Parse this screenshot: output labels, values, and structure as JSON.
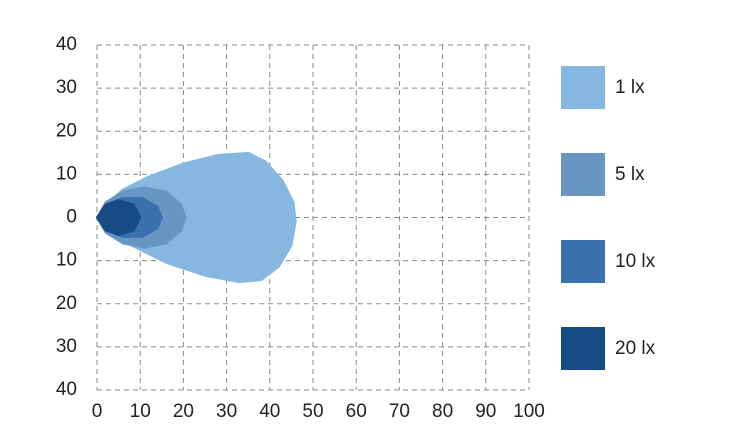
{
  "chart_data": {
    "type": "contour",
    "xlim": [
      0,
      100
    ],
    "xticks": [
      0,
      10,
      20,
      30,
      40,
      50,
      60,
      70,
      80,
      90,
      100
    ],
    "ylim": [
      -40,
      40
    ],
    "yticks": [
      {
        "value": 40,
        "label": "40"
      },
      {
        "value": 30,
        "label": "30"
      },
      {
        "value": 20,
        "label": "20"
      },
      {
        "value": 10,
        "label": "10"
      },
      0,
      {
        "value": -10,
        "label": "10"
      },
      {
        "value": -20,
        "label": "20"
      },
      {
        "value": -30,
        "label": "30"
      },
      {
        "value": -40,
        "label": "40"
      }
    ],
    "grid": true,
    "series": [
      {
        "name": "1 lx",
        "color": "#86b7e1",
        "x": [
          0,
          2,
          6,
          12,
          20,
          28,
          35,
          39,
          43,
          45.5,
          46,
          45,
          42,
          38,
          33,
          25,
          16,
          8,
          3
        ],
        "y": [
          0,
          3,
          6.5,
          9.5,
          12.5,
          14.5,
          15,
          13,
          8.5,
          3.5,
          -1,
          -6.5,
          -11.5,
          -14.5,
          -15,
          -13.5,
          -10.5,
          -6.5,
          -3
        ]
      },
      {
        "name": "5 lx",
        "color": "#6796c3",
        "x": [
          0,
          2,
          6,
          11,
          16,
          19.5,
          20.5,
          19.5,
          16,
          11,
          6,
          2
        ],
        "y": [
          0,
          3.5,
          6,
          7,
          6,
          3,
          0,
          -3,
          -6,
          -7,
          -6,
          -3.5
        ]
      },
      {
        "name": "10 lx",
        "color": "#3a70b0",
        "x": [
          0,
          2,
          6,
          10.5,
          14,
          15,
          14,
          10.5,
          6,
          2
        ],
        "y": [
          0,
          3,
          4.5,
          4.5,
          2.5,
          0,
          -2.5,
          -4.5,
          -4.5,
          -3
        ]
      },
      {
        "name": "20 lx",
        "color": "#164b85",
        "x": [
          0,
          2,
          5,
          8.5,
          10,
          8.5,
          5,
          2
        ],
        "y": [
          0,
          3,
          4,
          3,
          0,
          -3,
          -4,
          -3
        ]
      }
    ]
  }
}
